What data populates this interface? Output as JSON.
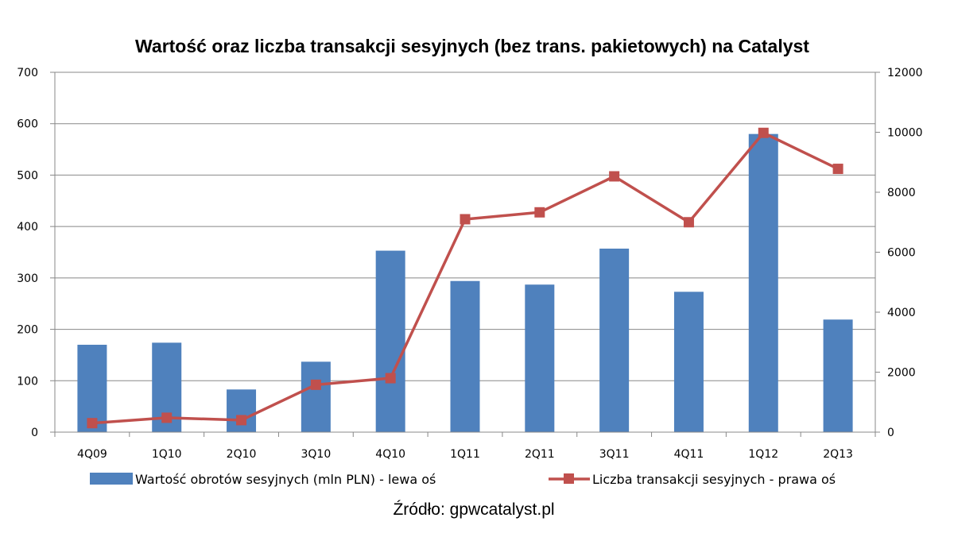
{
  "chart_data": {
    "type": "bar+line",
    "title": "Wartość oraz liczba transakcji sesyjnych (bez trans. pakietowych) na Catalyst",
    "categories": [
      "4Q09",
      "1Q10",
      "2Q10",
      "3Q10",
      "4Q10",
      "1Q11",
      "2Q11",
      "3Q11",
      "4Q11",
      "1Q12",
      "2Q13"
    ],
    "series": [
      {
        "name": "Wartość obrotów sesyjnych (mln PLN) - lewa oś",
        "type": "bar",
        "axis": "left",
        "color": "#4f81bd",
        "values": [
          170,
          174,
          83,
          137,
          353,
          294,
          287,
          357,
          273,
          580,
          219
        ]
      },
      {
        "name": "Liczba transakcji sesyjnych - prawa oś",
        "type": "line",
        "axis": "right",
        "color": "#c0504d",
        "values": [
          300,
          480,
          400,
          1580,
          1800,
          7100,
          7330,
          8530,
          7000,
          9980,
          8780
        ]
      }
    ],
    "y_left": {
      "min": 0,
      "max": 700,
      "ticks": [
        "0",
        "100",
        "200",
        "300",
        "400",
        "500",
        "600",
        "700"
      ]
    },
    "y_right": {
      "min": 0,
      "max": 12000,
      "ticks": [
        "0",
        "2000",
        "4000",
        "6000",
        "8000",
        "10000",
        "12000"
      ]
    },
    "grid": true,
    "legend_position": "bottom"
  },
  "source": "Źródło: gpwcatalyst.pl"
}
